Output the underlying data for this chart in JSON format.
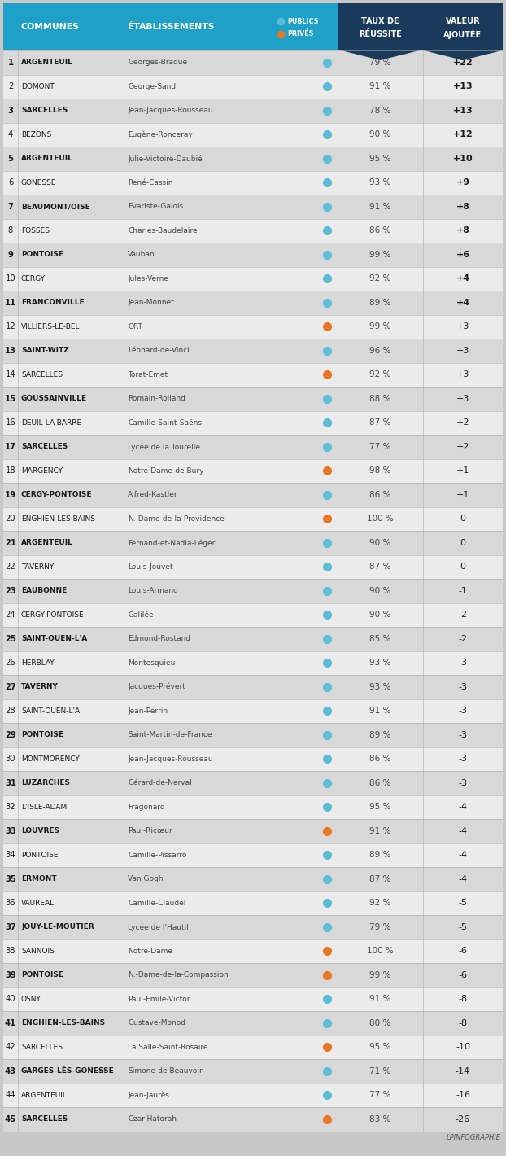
{
  "header_bg": "#1ea0c8",
  "header_dark_bg": "#1a3a5c",
  "header_text_color": "#ffffff",
  "row_bg_dark": "#d8d8d8",
  "row_bg_light": "#ebebeb",
  "color_public": "#5bbcd6",
  "color_prive": "#e87722",
  "rows": [
    {
      "rank": 1,
      "commune": "ARGENTEUIL",
      "etablissement": "Georges-Braque",
      "type": "public",
      "taux": "79 %",
      "valeur": "+22"
    },
    {
      "rank": 2,
      "commune": "DOMONT",
      "etablissement": "George-Sand",
      "type": "public",
      "taux": "91 %",
      "valeur": "+13"
    },
    {
      "rank": 3,
      "commune": "SARCELLES",
      "etablissement": "Jean-Jacques-Rousseau",
      "type": "public",
      "taux": "78 %",
      "valeur": "+13"
    },
    {
      "rank": 4,
      "commune": "BEZONS",
      "etablissement": "Eugène-Ronceray",
      "type": "public",
      "taux": "90 %",
      "valeur": "+12"
    },
    {
      "rank": 5,
      "commune": "ARGENTEUIL",
      "etablissement": "Julie-Victoire-Daubié",
      "type": "public",
      "taux": "95 %",
      "valeur": "+10"
    },
    {
      "rank": 6,
      "commune": "GONESSE",
      "etablissement": "René-Cassin",
      "type": "public",
      "taux": "93 %",
      "valeur": "+9"
    },
    {
      "rank": 7,
      "commune": "BEAUMONT/OISE",
      "etablissement": "Evariste-Galois",
      "type": "public",
      "taux": "91 %",
      "valeur": "+8"
    },
    {
      "rank": 8,
      "commune": "FOSSES",
      "etablissement": "Charles-Baudelaire",
      "type": "public",
      "taux": "86 %",
      "valeur": "+8"
    },
    {
      "rank": 9,
      "commune": "PONTOISE",
      "etablissement": "Vauban",
      "type": "public",
      "taux": "99 %",
      "valeur": "+6"
    },
    {
      "rank": 10,
      "commune": "CERGY",
      "etablissement": "Jules-Verne",
      "type": "public",
      "taux": "92 %",
      "valeur": "+4"
    },
    {
      "rank": 11,
      "commune": "FRANCONVILLE",
      "etablissement": "Jean-Monnet",
      "type": "public",
      "taux": "89 %",
      "valeur": "+4"
    },
    {
      "rank": 12,
      "commune": "VILLIERS-LE-BEL",
      "etablissement": "ORT",
      "type": "prive",
      "taux": "99 %",
      "valeur": "+3"
    },
    {
      "rank": 13,
      "commune": "SAINT-WITZ",
      "etablissement": "Léonard-de-Vinci",
      "type": "public",
      "taux": "96 %",
      "valeur": "+3"
    },
    {
      "rank": 14,
      "commune": "SARCELLES",
      "etablissement": "Torat-Emet",
      "type": "prive",
      "taux": "92 %",
      "valeur": "+3"
    },
    {
      "rank": 15,
      "commune": "GOUSSAINVILLE",
      "etablissement": "Romain-Rolland",
      "type": "public",
      "taux": "88 %",
      "valeur": "+3"
    },
    {
      "rank": 16,
      "commune": "DEUIL-LA-BARRE",
      "etablissement": "Camille-Saint-Saëns",
      "type": "public",
      "taux": "87 %",
      "valeur": "+2"
    },
    {
      "rank": 17,
      "commune": "SARCELLES",
      "etablissement": "Lycée de la Tourelle",
      "type": "public",
      "taux": "77 %",
      "valeur": "+2"
    },
    {
      "rank": 18,
      "commune": "MARGENCY",
      "etablissement": "Notre-Dame-de-Bury",
      "type": "prive",
      "taux": "98 %",
      "valeur": "+1"
    },
    {
      "rank": 19,
      "commune": "CERGY-PONTOISE",
      "etablissement": "Alfred-Kastler",
      "type": "public",
      "taux": "86 %",
      "valeur": "+1"
    },
    {
      "rank": 20,
      "commune": "ENGHIEN-LES-BAINS",
      "etablissement": "N.-Dame-de-la-Providence",
      "type": "prive",
      "taux": "100 %",
      "valeur": "0"
    },
    {
      "rank": 21,
      "commune": "ARGENTEUIL",
      "etablissement": "Fernand-et-Nadia-Léger",
      "type": "public",
      "taux": "90 %",
      "valeur": "0"
    },
    {
      "rank": 22,
      "commune": "TAVERNY",
      "etablissement": "Louis-Jouvet",
      "type": "public",
      "taux": "87 %",
      "valeur": "0"
    },
    {
      "rank": 23,
      "commune": "EAUBONNE",
      "etablissement": "Louis-Armand",
      "type": "public",
      "taux": "90 %",
      "valeur": "-1"
    },
    {
      "rank": 24,
      "commune": "CERGY-PONTOISE",
      "etablissement": "Galilée",
      "type": "public",
      "taux": "90 %",
      "valeur": "-2"
    },
    {
      "rank": 25,
      "commune": "SAINT-OUEN-L'A",
      "etablissement": "Edmond-Rostand",
      "type": "public",
      "taux": "85 %",
      "valeur": "-2"
    },
    {
      "rank": 26,
      "commune": "HERBLAY",
      "etablissement": "Montesquieu",
      "type": "public",
      "taux": "93 %",
      "valeur": "-3"
    },
    {
      "rank": 27,
      "commune": "TAVERNY",
      "etablissement": "Jacques-Prévert",
      "type": "public",
      "taux": "93 %",
      "valeur": "-3"
    },
    {
      "rank": 28,
      "commune": "SAINT-OUEN-L'A",
      "etablissement": "Jean-Perrin",
      "type": "public",
      "taux": "91 %",
      "valeur": "-3"
    },
    {
      "rank": 29,
      "commune": "PONTOISE",
      "etablissement": "Saint-Martin-de-France",
      "type": "public",
      "taux": "89 %",
      "valeur": "-3"
    },
    {
      "rank": 30,
      "commune": "MONTMORENCY",
      "etablissement": "Jean-Jacques-Rousseau",
      "type": "public",
      "taux": "86 %",
      "valeur": "-3"
    },
    {
      "rank": 31,
      "commune": "LUZARCHES",
      "etablissement": "Gérard-de-Nerval",
      "type": "public",
      "taux": "86 %",
      "valeur": "-3"
    },
    {
      "rank": 32,
      "commune": "L'ISLE-ADAM",
      "etablissement": "Fragonard",
      "type": "public",
      "taux": "95 %",
      "valeur": "-4"
    },
    {
      "rank": 33,
      "commune": "LOUVRES",
      "etablissement": "Paul-Ricœur",
      "type": "prive",
      "taux": "91 %",
      "valeur": "-4"
    },
    {
      "rank": 34,
      "commune": "PONTOISE",
      "etablissement": "Camille-Pissarro",
      "type": "public",
      "taux": "89 %",
      "valeur": "-4"
    },
    {
      "rank": 35,
      "commune": "ERMONT",
      "etablissement": "Van Gogh",
      "type": "public",
      "taux": "87 %",
      "valeur": "-4"
    },
    {
      "rank": 36,
      "commune": "VAUREAL",
      "etablissement": "Camille-Claudel",
      "type": "public",
      "taux": "92 %",
      "valeur": "-5"
    },
    {
      "rank": 37,
      "commune": "JOUY-LE-MOUTIER",
      "etablissement": "Lycée de l'Hautil",
      "type": "public",
      "taux": "79 %",
      "valeur": "-5"
    },
    {
      "rank": 38,
      "commune": "SANNOIS",
      "etablissement": "Notre-Dame",
      "type": "prive",
      "taux": "100 %",
      "valeur": "-6"
    },
    {
      "rank": 39,
      "commune": "PONTOISE",
      "etablissement": "N.-Dame-de-la-Compassion",
      "type": "prive",
      "taux": "99 %",
      "valeur": "-6"
    },
    {
      "rank": 40,
      "commune": "OSNY",
      "etablissement": "Paul-Emile-Victor",
      "type": "public",
      "taux": "91 %",
      "valeur": "-8"
    },
    {
      "rank": 41,
      "commune": "ENGHIEN-LES-BAINS",
      "etablissement": "Gustave-Monod",
      "type": "public",
      "taux": "80 %",
      "valeur": "-8"
    },
    {
      "rank": 42,
      "commune": "SARCELLES",
      "etablissement": "La Salle-Saint-Rosaire",
      "type": "prive",
      "taux": "95 %",
      "valeur": "-10"
    },
    {
      "rank": 43,
      "commune": "GARGES-LÉS-GONESSE",
      "etablissement": "Simone-de-Beauvoir",
      "type": "public",
      "taux": "71 %",
      "valeur": "-14"
    },
    {
      "rank": 44,
      "commune": "ARGENTEUIL",
      "etablissement": "Jean-Jaurès",
      "type": "public",
      "taux": "77 %",
      "valeur": "-16"
    },
    {
      "rank": 45,
      "commune": "SARCELLES",
      "etablissement": "Ozar-Hatorah",
      "type": "prive",
      "taux": "83 %",
      "valeur": "-26"
    }
  ],
  "footer": "LPINFOGRAPHIE"
}
